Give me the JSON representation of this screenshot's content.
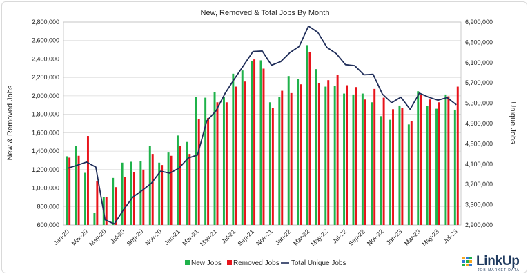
{
  "chart_data": {
    "type": "bar",
    "title": "New, Removed & Total Jobs By Month",
    "ylabel": "New & Removed Jobs",
    "y2label": "Unique Jobs",
    "ylim": [
      600000,
      2800000
    ],
    "y2lim": [
      2900000,
      6900000
    ],
    "yticks": [
      "600,000",
      "800,000",
      "1,000,000",
      "1,200,000",
      "1,400,000",
      "1,600,000",
      "1,800,000",
      "2,000,000",
      "2,200,000",
      "2,400,000",
      "2,600,000",
      "2,800,000"
    ],
    "y2ticks": [
      "2,900,000",
      "3,300,000",
      "3,700,000",
      "4,100,000",
      "4,500,000",
      "4,900,000",
      "5,300,000",
      "5,700,000",
      "6,100,000",
      "6,500,000",
      "6,900,000"
    ],
    "xtick_labels": [
      "Jan-20",
      "Mar-20",
      "May-20",
      "Jul-20",
      "Sep-20",
      "Nov-20",
      "Jan-21",
      "Mar-21",
      "May-21",
      "Jul-21",
      "Sep-21",
      "Nov-21",
      "Jan-22",
      "Mar-22",
      "May-22",
      "Jul-22",
      "Sep-22",
      "Nov-22",
      "Jan-23",
      "Mar-23",
      "May-23",
      "Jul-23"
    ],
    "categories": [
      "Jan-20",
      "Feb-20",
      "Mar-20",
      "Apr-20",
      "May-20",
      "Jun-20",
      "Jul-20",
      "Aug-20",
      "Sep-20",
      "Oct-20",
      "Nov-20",
      "Dec-20",
      "Jan-21",
      "Feb-21",
      "Mar-21",
      "Apr-21",
      "May-21",
      "Jun-21",
      "Jul-21",
      "Aug-21",
      "Sep-21",
      "Oct-21",
      "Nov-21",
      "Dec-21",
      "Jan-22",
      "Feb-22",
      "Mar-22",
      "Apr-22",
      "May-22",
      "Jun-22",
      "Jul-22",
      "Aug-22",
      "Sep-22",
      "Oct-22",
      "Nov-22",
      "Dec-22",
      "Jan-23",
      "Feb-23",
      "Mar-23",
      "Apr-23",
      "May-23",
      "Jun-23",
      "Jul-23"
    ],
    "series": [
      {
        "name": "New Jobs",
        "kind": "bar",
        "axis": "left",
        "color": "#1fb24a",
        "values": [
          1345000,
          1460000,
          1165000,
          730000,
          905000,
          1110000,
          1275000,
          1285000,
          1290000,
          1460000,
          1275000,
          1385000,
          1570000,
          1500000,
          1990000,
          1980000,
          2040000,
          1990000,
          2240000,
          2275000,
          2380000,
          2385000,
          1930000,
          1990000,
          2215000,
          2180000,
          2550000,
          2290000,
          2100000,
          2110000,
          2025000,
          2015000,
          2025000,
          1930000,
          1780000,
          1740000,
          1895000,
          1690000,
          2050000,
          1890000,
          1860000,
          2015000,
          1850000
        ]
      },
      {
        "name": "Removed Jobs",
        "kind": "bar",
        "axis": "left",
        "color": "#e8141b",
        "values": [
          1330000,
          1350000,
          1565000,
          1075000,
          905000,
          1010000,
          1120000,
          1170000,
          1200000,
          1370000,
          1250000,
          1350000,
          1455000,
          1370000,
          1750000,
          1760000,
          1930000,
          1930000,
          2100000,
          2155000,
          2395000,
          2295000,
          1870000,
          2055000,
          2030000,
          2125000,
          2475000,
          2135000,
          2170000,
          2225000,
          2115000,
          2095000,
          1960000,
          2075000,
          1980000,
          1855000,
          1865000,
          1725000,
          2015000,
          1960000,
          1930000,
          1995000,
          2100000
        ]
      },
      {
        "name": "Total Unique Jobs",
        "kind": "line",
        "axis": "right",
        "color": "#1f2d59",
        "values": [
          4020000,
          4080000,
          4140000,
          4040000,
          3000000,
          2920000,
          3200000,
          3450000,
          3580000,
          3720000,
          3960000,
          3920000,
          4020000,
          4220000,
          4280000,
          4950000,
          5150000,
          5500000,
          5780000,
          6050000,
          6320000,
          6330000,
          6050000,
          6120000,
          6300000,
          6420000,
          6820000,
          6700000,
          6400000,
          6280000,
          6060000,
          6040000,
          5860000,
          5870000,
          5480000,
          5310000,
          5420000,
          5180000,
          5500000,
          5420000,
          5360000,
          5410000,
          5270000
        ]
      }
    ],
    "legend": [
      "New Jobs",
      "Removed Jobs",
      "Total Unique Jobs"
    ],
    "legend_position": "bottom",
    "grid": true
  },
  "brand": {
    "name": "LinkUp",
    "tagline": "JOB MARKET DATA"
  }
}
